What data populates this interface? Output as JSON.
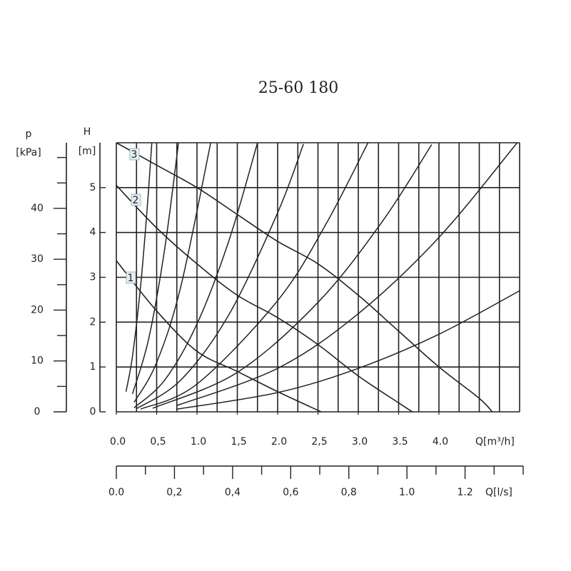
{
  "chart_data": {
    "type": "line",
    "title": "25-60 180",
    "y_label_top": "H",
    "y_label_unit": "[m]",
    "y2_label_top": "p",
    "y2_label_unit": "[kPa]",
    "x_label": "Q[m³/h]",
    "x2_label": "Q[l/s]",
    "xlim": [
      0,
      5
    ],
    "ylim": [
      0,
      6
    ],
    "y2lim": [
      0,
      52.9
    ],
    "x2lim": [
      0,
      1.4
    ],
    "xticks": [
      {
        "value": 0,
        "label": "0.0"
      },
      {
        "value": 0.5,
        "label": "0,5"
      },
      {
        "value": 1,
        "label": "1.0"
      },
      {
        "value": 1.5,
        "label": "1,5"
      },
      {
        "value": 2,
        "label": "2.0"
      },
      {
        "value": 2.5,
        "label": "2,5"
      },
      {
        "value": 3,
        "label": "3.0"
      },
      {
        "value": 3.5,
        "label": "3.5"
      },
      {
        "value": 4,
        "label": "4.0"
      }
    ],
    "xgrid": [
      0.25,
      0.5,
      0.75,
      1,
      1.25,
      1.5,
      1.75,
      2,
      2.25,
      2.5,
      2.75,
      3,
      3.25,
      3.5,
      3.75,
      4,
      4.25,
      4.5,
      4.75,
      5
    ],
    "yticks": [
      0,
      1,
      2,
      3,
      4,
      5
    ],
    "y2ticks": [
      0,
      10,
      20,
      30,
      40
    ],
    "y2minor_ticks": [
      5,
      15,
      25,
      35,
      45,
      50
    ],
    "x2ticks": [
      {
        "value": 0,
        "label": "0.0"
      },
      {
        "value": 0.2,
        "label": "0,2"
      },
      {
        "value": 0.4,
        "label": "0,4"
      },
      {
        "value": 0.6,
        "label": "0,6"
      },
      {
        "value": 0.8,
        "label": "0,8"
      },
      {
        "value": 1,
        "label": "1.0"
      },
      {
        "value": 1.2,
        "label": "1.2"
      }
    ],
    "x2minor_ticks": [
      0.1,
      0.3,
      0.5,
      0.7,
      0.9,
      1.1,
      1.3,
      1.4
    ],
    "grid": true,
    "color": "#222222",
    "series": [
      {
        "name": "1",
        "x": [
          0,
          0.5,
          1.0,
          1.5,
          2.0,
          2.54
        ],
        "values": [
          3.37,
          2.25,
          1.35,
          0.9,
          0.45,
          0
        ]
      },
      {
        "name": "2",
        "x": [
          0,
          0.5,
          1.0,
          1.5,
          2.0,
          2.5,
          3.0,
          3.5,
          3.67
        ],
        "values": [
          5.05,
          4.1,
          3.3,
          2.6,
          2.1,
          1.5,
          0.8,
          0.2,
          0
        ]
      },
      {
        "name": "3",
        "x": [
          0,
          0.5,
          1.0,
          1.5,
          2.0,
          2.5,
          3.0,
          3.5,
          4.0,
          4.5,
          4.66
        ],
        "values": [
          6.0,
          5.5,
          5.0,
          4.4,
          3.8,
          3.3,
          2.6,
          1.8,
          1.0,
          0.3,
          0
        ]
      }
    ],
    "system_curves": [
      {
        "x": [
          0.12,
          0.2,
          0.3,
          0.38,
          0.44
        ],
        "values": [
          0.45,
          1.24,
          2.79,
          4.48,
          6.0
        ]
      },
      {
        "x": [
          0.2,
          0.4,
          0.6,
          0.77
        ],
        "values": [
          0.4,
          1.62,
          3.64,
          5.99
        ]
      },
      {
        "x": [
          0.22,
          0.5,
          0.8,
          1.17
        ],
        "values": [
          0.21,
          1.1,
          2.8,
          6.0
        ]
      },
      {
        "x": [
          0.22,
          0.6,
          1.0,
          1.4,
          1.75
        ],
        "values": [
          0.09,
          0.71,
          1.96,
          3.84,
          6.0
        ]
      },
      {
        "x": [
          0.25,
          0.8,
          1.4,
          2.0,
          2.32
        ],
        "values": [
          0.07,
          0.71,
          2.18,
          4.44,
          5.97
        ]
      },
      {
        "x": [
          0.3,
          1.0,
          2.0,
          2.6,
          3.12
        ],
        "values": [
          0.06,
          0.62,
          2.48,
          4.19,
          6.0
        ]
      },
      {
        "x": [
          0.45,
          1.5,
          2.5,
          3.3,
          3.91
        ],
        "values": [
          0.08,
          0.88,
          2.44,
          4.25,
          5.96
        ]
      },
      {
        "x": [
          0.75,
          2.0,
          3.0,
          4.0,
          4.97
        ],
        "values": [
          0.14,
          0.97,
          2.19,
          3.89,
          6.0
        ]
      },
      {
        "x": [
          0.75,
          2.0,
          3.0,
          4.0,
          5.0
        ],
        "values": [
          0.06,
          0.43,
          0.97,
          1.73,
          2.7
        ]
      }
    ]
  }
}
